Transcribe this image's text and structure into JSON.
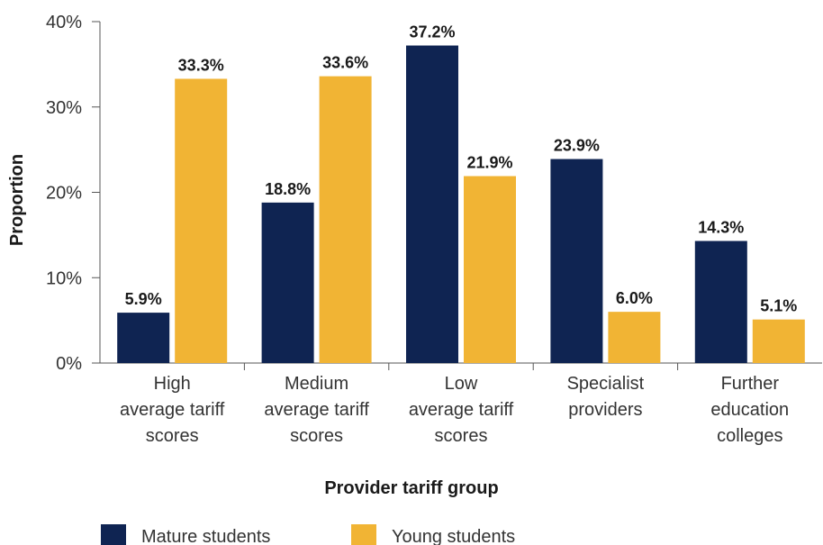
{
  "chart_data": {
    "type": "bar",
    "title": "",
    "xlabel": "Provider tariff group",
    "ylabel": "Proportion",
    "ylim": [
      0,
      40
    ],
    "y_ticks": [
      0,
      10,
      20,
      30,
      40
    ],
    "y_tick_labels": [
      "0%",
      "10%",
      "20%",
      "30%",
      "40%"
    ],
    "categories": [
      [
        "High",
        "average tariff",
        "scores"
      ],
      [
        "Medium",
        "average tariff",
        "scores"
      ],
      [
        "Low",
        "average tariff",
        "scores"
      ],
      [
        "Specialist",
        "providers"
      ],
      [
        "Further",
        "education",
        "colleges"
      ]
    ],
    "series": [
      {
        "name": "Mature students",
        "color": "#0f2452",
        "values": [
          5.9,
          18.8,
          37.2,
          23.9,
          14.3
        ],
        "labels": [
          "5.9%",
          "18.8%",
          "37.2%",
          "23.9%",
          "14.3%"
        ]
      },
      {
        "name": "Young students",
        "color": "#f1b434",
        "values": [
          33.3,
          33.6,
          21.9,
          6.0,
          5.1
        ],
        "labels": [
          "33.3%",
          "33.6%",
          "21.9%",
          "6.0%",
          "5.1%"
        ]
      }
    ],
    "grid": false,
    "legend_position": "bottom"
  }
}
